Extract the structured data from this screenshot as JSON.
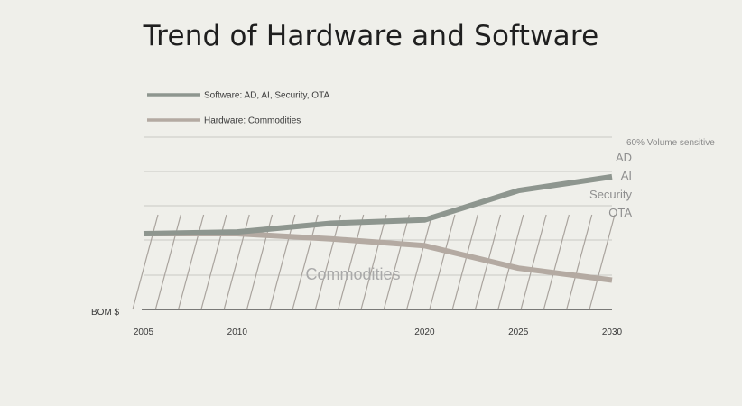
{
  "chart_data": {
    "type": "line",
    "title": "Trend of Hardware and Software",
    "ylabel": "BOM $",
    "xlabel": "",
    "x": [
      2005,
      2010,
      2015,
      2020,
      2025,
      2030
    ],
    "xticks": [
      2005,
      2010,
      2020,
      2025,
      2030
    ],
    "xlim": [
      2005,
      2030
    ],
    "ylim": [
      0,
      100
    ],
    "grid": true,
    "legend_position": "top-left",
    "series": [
      {
        "name": "Software: AD, AI, Security, OTA",
        "color": "#8e968f",
        "values": [
          44,
          45,
          50,
          52,
          69,
          77
        ]
      },
      {
        "name": "Hardware: Commodities",
        "color": "#b4aaa2",
        "values": [
          44,
          44,
          41,
          37,
          24,
          17
        ]
      }
    ],
    "annotations": {
      "note": "60% Volume sensitive",
      "software_items": [
        "AD",
        "AI",
        "Security",
        "OTA"
      ],
      "hardware_label": "Commodities"
    }
  },
  "colors": {
    "background": "#efefea",
    "grid": "#c8c8c4",
    "hatch": "#a9a39d",
    "axis": "#333333"
  }
}
